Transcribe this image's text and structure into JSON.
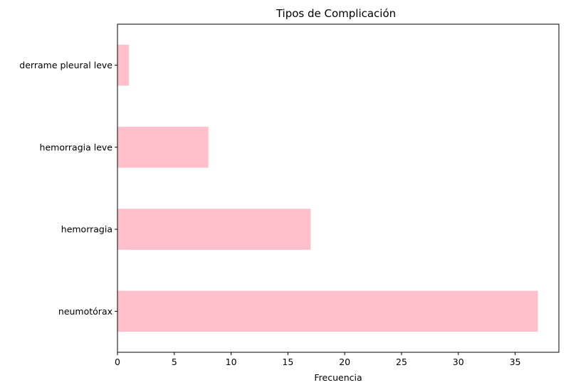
{
  "chart_data": {
    "type": "bar",
    "orientation": "horizontal",
    "title": "Tipos de Complicación",
    "xlabel": "Frecuencia",
    "ylabel": "",
    "categories": [
      "neumotórax",
      "hemorragia",
      "hemorragia leve",
      "derrame pleural leve"
    ],
    "values": [
      37,
      17,
      8,
      1
    ],
    "xlim": [
      0,
      38.85
    ],
    "xticks": [
      0,
      5,
      10,
      15,
      20,
      25,
      30,
      35
    ],
    "grid": false,
    "legend": "none",
    "bar_color": "#ffc0cb"
  }
}
